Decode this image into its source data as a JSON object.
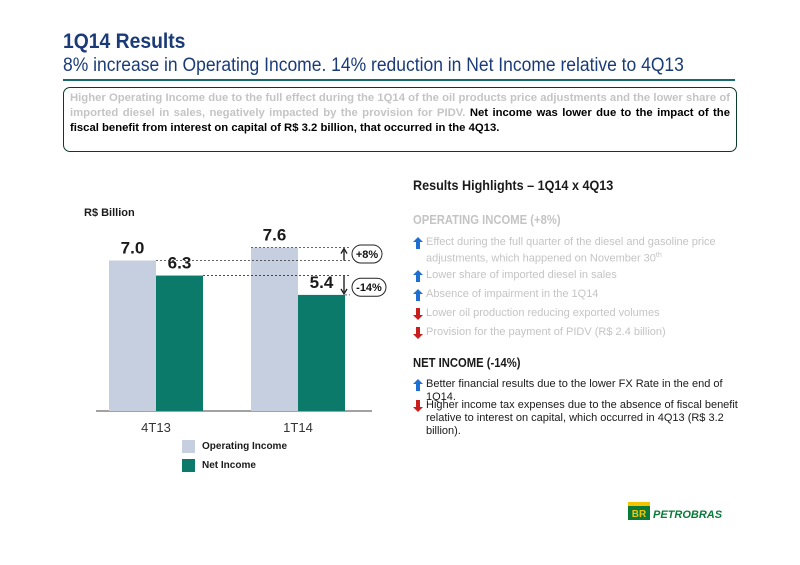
{
  "header": {
    "title": "1Q14 Results",
    "subtitle": "8% increase in Operating Income. 14% reduction in Net Income relative to 4Q13"
  },
  "summary": {
    "light_text": "Higher Operating Income due to the full effect during the 1Q14 of the oil products price adjustments and the lower share of imported diesel in sales, negatively impacted by the provision for PIDV.",
    "dark_text": "Net income was lower due to the impact of the fiscal benefit from interest on capital of R$ 3.2 billion, that occurred in the 4Q13."
  },
  "chart_data": {
    "type": "bar",
    "unit_label": "R$ Billion",
    "categories": [
      "4T13",
      "1T14"
    ],
    "series": [
      {
        "name": "Operating Income",
        "values": [
          7.0,
          7.6
        ],
        "labels": [
          "7.0",
          "7.6"
        ],
        "color": "#c5cfe0"
      },
      {
        "name": "Net Income",
        "values": [
          6.3,
          5.4
        ],
        "labels": [
          "6.3",
          "5.4"
        ],
        "color": "#0c7a6a"
      }
    ],
    "ylim": [
      0,
      8.6
    ],
    "annotations": [
      {
        "text": "+8%",
        "direction": "up"
      },
      {
        "text": "-14%",
        "direction": "down"
      }
    ],
    "legend": "bottom"
  },
  "highlights": {
    "title": "Results Highlights – 1Q14 x 4Q13",
    "operating": {
      "heading": "OPERATING INCOME (+8%)",
      "items": [
        {
          "text": "Effect during the full quarter of the diesel and gasoline price adjustments, which happened on November 30",
          "sup": "th",
          "arrow": "up"
        },
        {
          "text": "Lower share of imported diesel in sales",
          "arrow": "up"
        },
        {
          "text": "Absence of impairment in the 1Q14",
          "arrow": "up"
        },
        {
          "text": "Lower oil production reducing exported volumes",
          "arrow": "down"
        },
        {
          "text": "Provision for the payment of PIDV (R$ 2.4 billion)",
          "arrow": "down"
        }
      ]
    },
    "net": {
      "heading": "NET INCOME (-14%)",
      "items": [
        {
          "text": "Better financial results due to the lower FX Rate in the end of 1Q14.",
          "arrow": "up"
        },
        {
          "text": "Higher income tax expenses due to the absence of fiscal benefit relative to interest on capital, which occurred in 4Q13 (R$ 3.2 billion).",
          "arrow": "down"
        }
      ]
    }
  },
  "logo": {
    "text": "PETROBRAS",
    "mark": "BR"
  },
  "colors": {
    "title": "#1a3b78",
    "up_arrow": "#1f6fd1",
    "down_arrow": "#c81e1e",
    "brand_green": "#0a7a3a",
    "brand_yellow": "#f5c400"
  }
}
